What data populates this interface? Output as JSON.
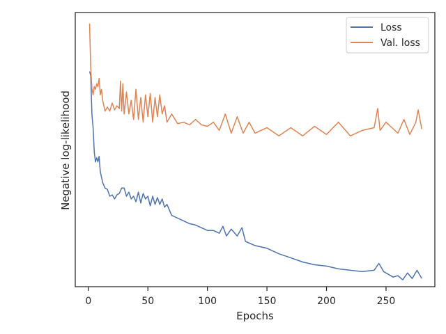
{
  "chart_data": {
    "type": "line",
    "xlabel": "Epochs",
    "ylabel": "Negative log-likelihood",
    "xlim": [
      -11,
      291
    ],
    "ylim": [
      0,
      10
    ],
    "x_ticks": [
      0,
      50,
      100,
      150,
      200,
      250
    ],
    "y_ticks_shown": false,
    "grid": false,
    "legend_position": "top-right",
    "series": [
      {
        "name": "Loss",
        "color": "#4c72b0",
        "x": [
          1,
          2,
          3,
          4,
          5,
          6,
          7,
          8,
          9,
          10,
          12,
          14,
          16,
          18,
          20,
          22,
          24,
          26,
          28,
          30,
          32,
          34,
          36,
          38,
          40,
          42,
          44,
          46,
          48,
          50,
          52,
          54,
          56,
          58,
          60,
          62,
          64,
          66,
          70,
          75,
          80,
          85,
          90,
          95,
          100,
          105,
          110,
          113,
          116,
          120,
          125,
          129,
          132,
          140,
          150,
          160,
          170,
          180,
          190,
          200,
          210,
          220,
          230,
          240,
          244,
          248,
          252,
          256,
          260,
          264,
          268,
          272,
          276,
          280
        ],
        "y": [
          7.85,
          7.7,
          6.3,
          5.8,
          4.9,
          4.55,
          4.7,
          4.55,
          4.75,
          4.2,
          3.8,
          3.6,
          3.55,
          3.3,
          3.35,
          3.2,
          3.35,
          3.4,
          3.6,
          3.6,
          3.3,
          3.45,
          3.2,
          3.3,
          3.1,
          3.45,
          3.05,
          3.4,
          3.2,
          3.3,
          2.95,
          3.3,
          3.0,
          3.25,
          3.0,
          3.2,
          2.9,
          3.0,
          2.6,
          2.5,
          2.4,
          2.3,
          2.25,
          2.15,
          2.05,
          2.05,
          1.95,
          2.2,
          1.85,
          2.1,
          1.85,
          2.15,
          1.65,
          1.5,
          1.4,
          1.2,
          1.05,
          0.9,
          0.8,
          0.75,
          0.65,
          0.6,
          0.55,
          0.6,
          0.85,
          0.55,
          0.45,
          0.35,
          0.4,
          0.25,
          0.5,
          0.3,
          0.6,
          0.3
        ]
      },
      {
        "name": "Val. loss",
        "color": "#dd8452",
        "x": [
          1,
          2,
          3,
          4,
          5,
          6,
          7,
          8,
          9,
          10,
          11,
          12,
          14,
          16,
          18,
          20,
          22,
          24,
          26,
          27,
          28,
          29,
          30,
          32,
          34,
          36,
          38,
          40,
          42,
          44,
          46,
          48,
          50,
          52,
          54,
          56,
          58,
          60,
          62,
          64,
          66,
          70,
          75,
          80,
          85,
          90,
          95,
          100,
          105,
          110,
          115,
          120,
          125,
          130,
          135,
          140,
          150,
          160,
          170,
          180,
          190,
          200,
          210,
          220,
          230,
          240,
          243,
          245,
          250,
          255,
          260,
          265,
          270,
          275,
          277,
          280
        ],
        "y": [
          9.6,
          8.0,
          7.2,
          7.0,
          7.3,
          7.2,
          7.4,
          7.3,
          7.6,
          7.0,
          7.2,
          6.8,
          6.4,
          6.55,
          6.4,
          6.7,
          6.45,
          6.6,
          6.5,
          7.5,
          6.4,
          7.4,
          6.3,
          7.1,
          6.3,
          6.8,
          6.1,
          7.2,
          6.1,
          6.9,
          6.0,
          7.0,
          6.2,
          7.05,
          6.0,
          6.9,
          6.2,
          7.0,
          6.3,
          6.6,
          6.0,
          6.3,
          5.95,
          6.0,
          5.9,
          6.1,
          5.9,
          5.85,
          6.0,
          5.7,
          6.3,
          5.6,
          6.2,
          5.6,
          6.0,
          5.6,
          5.8,
          5.5,
          5.8,
          5.5,
          5.85,
          5.55,
          6.0,
          5.5,
          5.7,
          5.8,
          6.5,
          5.7,
          6.0,
          5.8,
          5.6,
          6.1,
          5.55,
          6.0,
          6.45,
          5.75
        ]
      }
    ]
  }
}
